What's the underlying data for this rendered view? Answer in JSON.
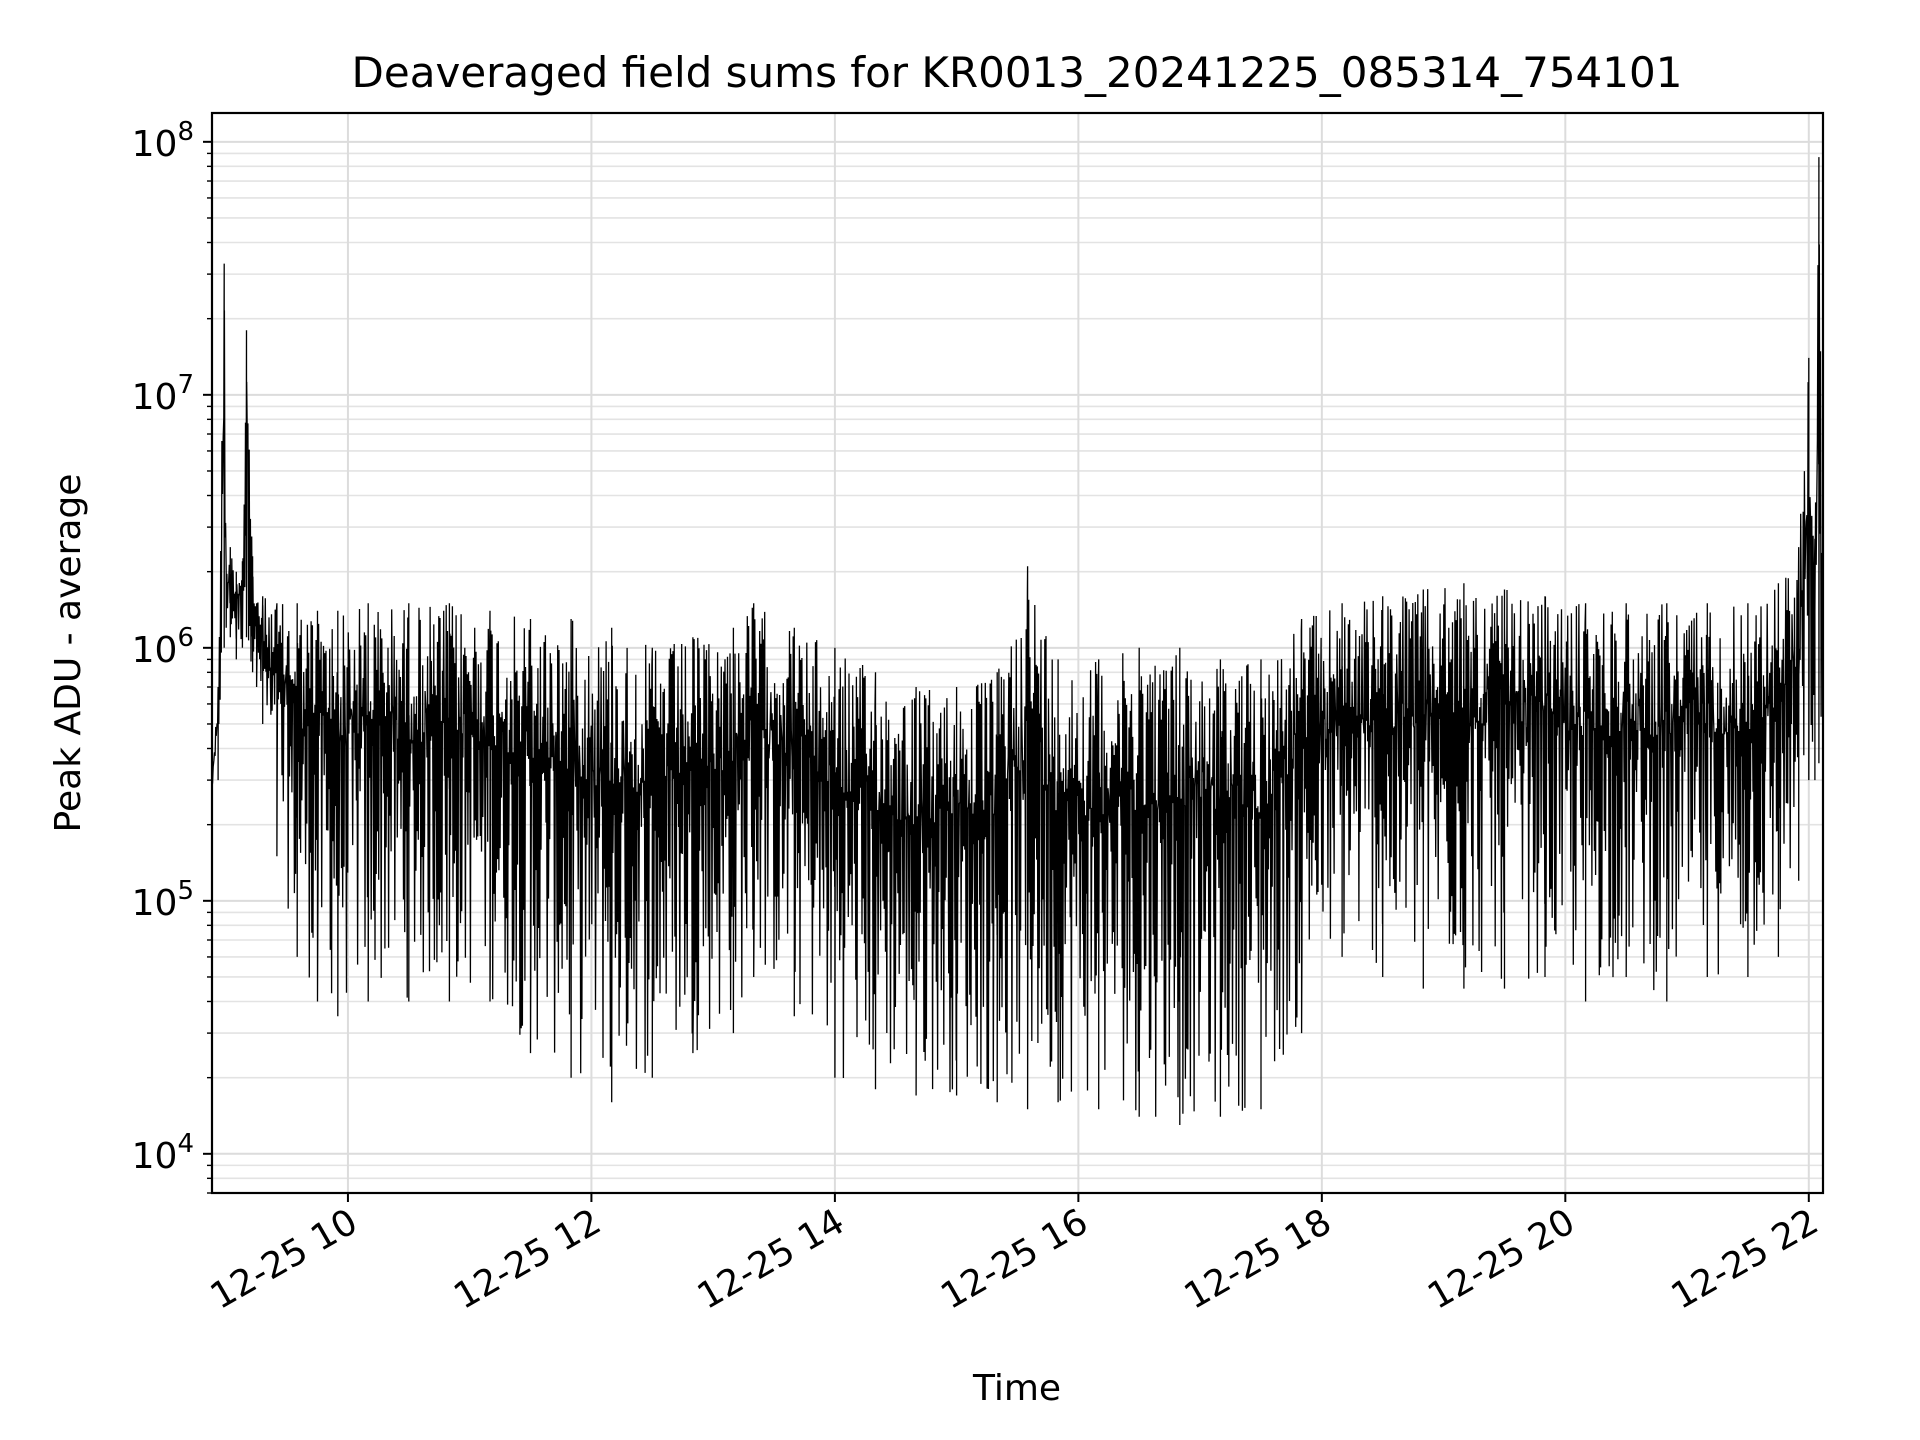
{
  "chart_data": {
    "type": "line",
    "title": "Deaveraged field sums for KR0013_20241225_085314_754101",
    "xlabel": "Time",
    "ylabel": "Peak ADU - average",
    "xlim": [
      "2024-12-25 08:53",
      "2024-12-25 22:07"
    ],
    "ylim": [
      7000,
      130000000
    ],
    "yscale": "log",
    "grid": true,
    "x_ticks": [
      {
        "value": "2024-12-25 10:00",
        "label": "12-25 10"
      },
      {
        "value": "2024-12-25 12:00",
        "label": "12-25 12"
      },
      {
        "value": "2024-12-25 14:00",
        "label": "12-25 14"
      },
      {
        "value": "2024-12-25 16:00",
        "label": "12-25 16"
      },
      {
        "value": "2024-12-25 18:00",
        "label": "12-25 18"
      },
      {
        "value": "2024-12-25 20:00",
        "label": "12-25 20"
      },
      {
        "value": "2024-12-25 22:00",
        "label": "12-25 22"
      }
    ],
    "y_ticks": [
      {
        "value": 10000,
        "base": "10",
        "exp": "4"
      },
      {
        "value": 100000,
        "base": "10",
        "exp": "5"
      },
      {
        "value": 1000000,
        "base": "10",
        "exp": "6"
      },
      {
        "value": 10000000,
        "base": "10",
        "exp": "7"
      },
      {
        "value": 100000000,
        "base": "10",
        "exp": "8"
      }
    ],
    "series": [
      {
        "color": "#000000",
        "x": [
          "2024-12-25 08:53",
          "2024-12-25 08:56",
          "2024-12-25 08:59",
          "2024-12-25 09:00",
          "2024-12-25 09:02",
          "2024-12-25 09:05",
          "2024-12-25 09:08",
          "2024-12-25 09:10",
          "2024-12-25 09:13",
          "2024-12-25 09:15",
          "2024-12-25 09:18",
          "2024-12-25 09:25",
          "2024-12-25 09:35",
          "2024-12-25 09:45",
          "2024-12-25 09:55",
          "2024-12-25 10:10",
          "2024-12-25 10:30",
          "2024-12-25 10:50",
          "2024-12-25 11:10",
          "2024-12-25 11:30",
          "2024-12-25 11:50",
          "2024-12-25 12:10",
          "2024-12-25 12:30",
          "2024-12-25 12:50",
          "2024-12-25 13:10",
          "2024-12-25 13:20",
          "2024-12-25 13:40",
          "2024-12-25 14:00",
          "2024-12-25 14:20",
          "2024-12-25 14:40",
          "2024-12-25 15:00",
          "2024-12-25 15:20",
          "2024-12-25 15:35",
          "2024-12-25 15:50",
          "2024-12-25 16:10",
          "2024-12-25 16:30",
          "2024-12-25 16:50",
          "2024-12-25 17:10",
          "2024-12-25 17:30",
          "2024-12-25 17:50",
          "2024-12-25 18:10",
          "2024-12-25 18:30",
          "2024-12-25 18:50",
          "2024-12-25 19:10",
          "2024-12-25 19:30",
          "2024-12-25 19:50",
          "2024-12-25 20:10",
          "2024-12-25 20:30",
          "2024-12-25 20:50",
          "2024-12-25 21:10",
          "2024-12-25 21:30",
          "2024-12-25 21:45",
          "2024-12-25 21:55",
          "2024-12-25 22:00",
          "2024-12-25 22:03",
          "2024-12-25 22:05",
          "2024-12-25 22:07"
        ],
        "peak": [
          300000,
          700000,
          33000000,
          2000000,
          2500000,
          2000000,
          2200000,
          18000000,
          2300000,
          1500000,
          1600000,
          1500000,
          1500000,
          1400000,
          1400000,
          1500000,
          1500000,
          1500000,
          1400000,
          1300000,
          1300000,
          1200000,
          1000000,
          1100000,
          1200000,
          1500000,
          1200000,
          1000000,
          800000,
          700000,
          700000,
          800000,
          2100000,
          900000,
          900000,
          1000000,
          1000000,
          900000,
          900000,
          1300000,
          1500000,
          1600000,
          1700000,
          1800000,
          1700000,
          1600000,
          1500000,
          1500000,
          1500000,
          1500000,
          1500000,
          1800000,
          2500000,
          14000000,
          2700000,
          87000000,
          1200000
        ],
        "trough": [
          280000,
          300000,
          1000000,
          1200000,
          1100000,
          900000,
          1000000,
          1100000,
          800000,
          700000,
          500000,
          150000,
          60000,
          40000,
          35000,
          40000,
          40000,
          40000,
          40000,
          25000,
          20000,
          16000,
          20000,
          25000,
          30000,
          50000,
          35000,
          20000,
          18000,
          17000,
          17000,
          16000,
          15000,
          16000,
          15000,
          14000,
          13000,
          14000,
          15000,
          30000,
          60000,
          50000,
          45000,
          45000,
          45000,
          50000,
          40000,
          50000,
          40000,
          50000,
          50000,
          60000,
          120000,
          300000,
          300000,
          350000,
          320000
        ]
      }
    ]
  }
}
